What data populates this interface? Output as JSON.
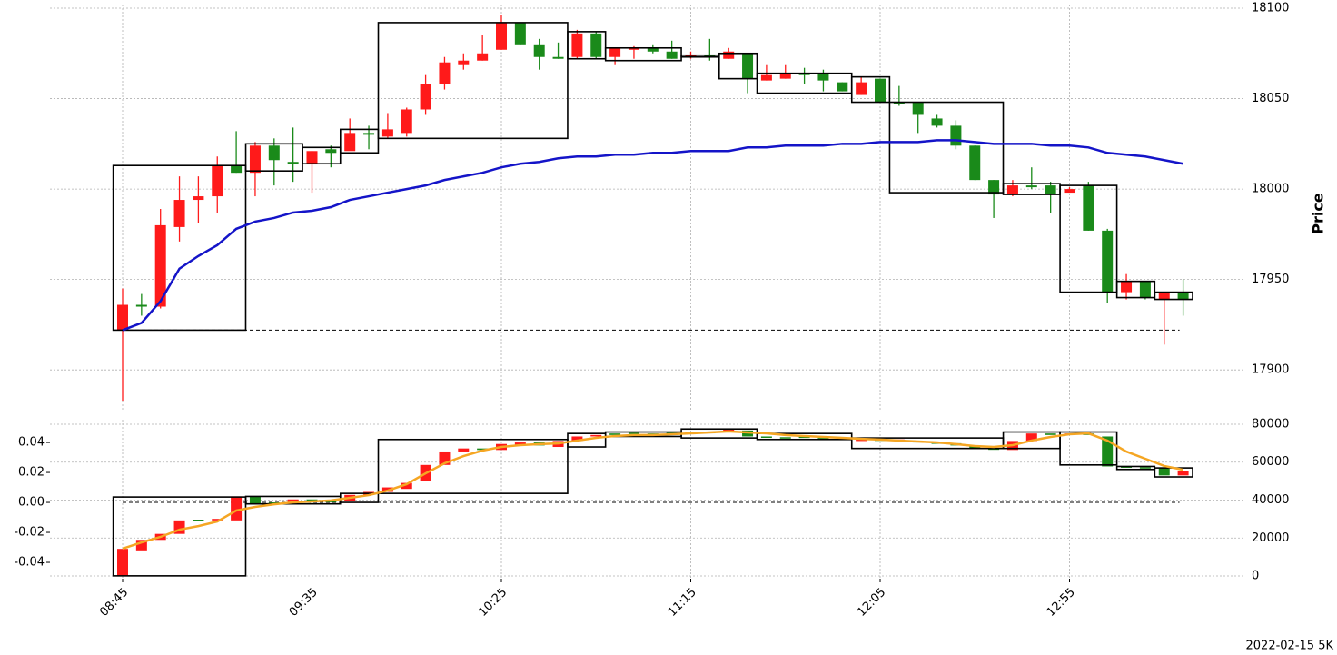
{
  "chart_data": [
    {
      "type": "candlestick",
      "ylabel": "Price",
      "ylim": [
        17877,
        18102
      ],
      "yticks": [
        17900,
        17950,
        18000,
        18050,
        18100
      ],
      "grid": true,
      "up_color": "#ff1a1a",
      "down_color": "#1a8a1a",
      "open": [
        17922,
        17936,
        17935,
        17979,
        17994,
        17996,
        18013,
        18009,
        18024,
        18015,
        18014,
        18022,
        18021,
        18031,
        18029,
        18031,
        18044,
        18058,
        18069,
        18071,
        18077,
        18092,
        18080,
        18073,
        18073,
        18086,
        18073,
        18077,
        18078,
        18076,
        18073,
        18074,
        18072,
        18075,
        18060,
        18061,
        18064,
        18064,
        18059,
        18052,
        18061,
        18048,
        18048,
        18039,
        18035,
        18024,
        18005,
        17997,
        18002,
        18002,
        17998,
        18002,
        17977,
        17943,
        17949,
        17939,
        17943
      ],
      "high": [
        17945,
        17942,
        17989,
        18007,
        18007,
        18018,
        18032,
        18026,
        18028,
        18034,
        18021,
        18024,
        18039,
        18035,
        18042,
        18045,
        18063,
        18073,
        18075,
        18085,
        18096,
        18092,
        18083,
        18081,
        18088,
        18087,
        18078,
        18079,
        18080,
        18082,
        18076,
        18083,
        18078,
        18075,
        18069,
        18069,
        18067,
        18066,
        18059,
        18062,
        18061,
        18057,
        18048,
        18041,
        18038,
        18024,
        18005,
        18005,
        18012,
        18004,
        18001,
        18004,
        17978,
        17953,
        17949,
        17943,
        17950
      ],
      "low": [
        17883,
        17930,
        17934,
        17971,
        17981,
        17987,
        18009,
        17996,
        18002,
        18004,
        17998,
        18012,
        18022,
        18022,
        18028,
        18029,
        18041,
        18055,
        18066,
        18071,
        18077,
        18080,
        18066,
        18072,
        18072,
        18072,
        18069,
        18072,
        18075,
        18072,
        18072,
        18071,
        18072,
        18053,
        18060,
        18061,
        18058,
        18054,
        18054,
        18052,
        18048,
        18046,
        18031,
        18034,
        18022,
        18005,
        17984,
        17996,
        18000,
        17987,
        17998,
        17977,
        17937,
        17939,
        17939,
        17914,
        17930
      ],
      "close": [
        17936,
        17935,
        17980,
        17994,
        17996,
        18013,
        18009,
        18024,
        18016,
        18014,
        18021,
        18020,
        18031,
        18030,
        18033,
        18044,
        18058,
        18070,
        18071,
        18075,
        18092,
        18080,
        18073,
        18072,
        18086,
        18073,
        18078,
        18078,
        18076,
        18072,
        18074,
        18073,
        18076,
        18061,
        18063,
        18064,
        18063,
        18060,
        18054,
        18059,
        18048,
        18047,
        18041,
        18035,
        18024,
        18005,
        17997,
        18002,
        18001,
        17997,
        18000,
        17977,
        17943,
        17949,
        17940,
        17943,
        17939
      ],
      "line": {
        "color": "#1414c8",
        "values": [
          17922,
          17926,
          17938,
          17956,
          17963,
          17969,
          17978,
          17982,
          17984,
          17987,
          17988,
          17990,
          17994,
          17996,
          17998,
          18000,
          18002,
          18005,
          18007,
          18009,
          18012,
          18014,
          18015,
          18017,
          18018,
          18018,
          18019,
          18019,
          18020,
          18020,
          18021,
          18021,
          18021,
          18023,
          18023,
          18024,
          18024,
          18024,
          18025,
          18025,
          18026,
          18026,
          18026,
          18027,
          18027,
          18026,
          18025,
          18025,
          18025,
          18024,
          18024,
          18023,
          18020,
          18019,
          18018,
          18016,
          18014
        ]
      },
      "boxes": [
        {
          "start": 0,
          "end": 6,
          "top": 18013,
          "bottom": 17922
        },
        {
          "start": 7,
          "end": 9,
          "top": 18025,
          "bottom": 18010
        },
        {
          "start": 10,
          "end": 11,
          "top": 18023,
          "bottom": 18014
        },
        {
          "start": 12,
          "end": 13,
          "top": 18033,
          "bottom": 18020
        },
        {
          "start": 14,
          "end": 23,
          "top": 18092,
          "bottom": 18028
        },
        {
          "start": 24,
          "end": 25,
          "top": 18087,
          "bottom": 18072
        },
        {
          "start": 26,
          "end": 29,
          "top": 18078,
          "bottom": 18071
        },
        {
          "start": 30,
          "end": 31,
          "top": 18074,
          "bottom": 18073
        },
        {
          "start": 32,
          "end": 33,
          "top": 18075,
          "bottom": 18061
        },
        {
          "start": 34,
          "end": 38,
          "top": 18064,
          "bottom": 18053
        },
        {
          "start": 39,
          "end": 40,
          "top": 18062,
          "bottom": 18048
        },
        {
          "start": 41,
          "end": 46,
          "top": 18048,
          "bottom": 17998
        },
        {
          "start": 47,
          "end": 49,
          "top": 18003,
          "bottom": 17997
        },
        {
          "start": 50,
          "end": 52,
          "top": 18002,
          "bottom": 17943
        },
        {
          "start": 53,
          "end": 54,
          "top": 17949,
          "bottom": 17940
        },
        {
          "start": 55,
          "end": 56,
          "top": 17943,
          "bottom": 17939
        }
      ],
      "reference_line": 17922
    },
    {
      "type": "candlestick",
      "ylim": [
        -0.0509,
        0.0552
      ],
      "yticks": [
        {
          "value": -0.04,
          "label": "-0.04"
        },
        {
          "value": -0.02,
          "label": "-0.02"
        },
        {
          "value": 0,
          "label": "0.00"
        },
        {
          "value": 0.02,
          "label": "0.02"
        },
        {
          "value": 0.04,
          "label": "0.04"
        }
      ],
      "y2lim": [
        -1437,
        82395
      ],
      "y2ticks": [
        0,
        20000,
        40000,
        60000,
        80000
      ],
      "grid": true,
      "up_color": "#ff1a1a",
      "down_color": "#1a8a1a",
      "open": [
        -0.049,
        -0.032,
        -0.025,
        -0.021,
        -0.0115,
        -0.012,
        -0.012,
        0.004,
        0.0,
        0.0,
        0.002,
        0.001,
        0.001,
        0.005,
        0.007,
        0.009,
        0.014,
        0.025,
        0.034,
        0.036,
        0.035,
        0.038,
        0.04,
        0.037,
        0.041,
        0.044,
        0.046,
        0.0465,
        0.046,
        0.0465,
        0.0465,
        0.047,
        0.047,
        0.048,
        0.044,
        0.0435,
        0.044,
        0.043,
        0.0425,
        0.041,
        0.042,
        0.041,
        0.041,
        0.04,
        0.0395,
        0.038,
        0.036,
        0.035,
        0.041,
        0.046,
        0.045,
        0.046,
        0.044,
        0.024,
        0.0235,
        0.023,
        0.018
      ],
      "close": [
        -0.031,
        -0.025,
        -0.021,
        -0.012,
        -0.0125,
        -0.011,
        0.004,
        -0.001,
        -0.001,
        0.002,
        0.001,
        0.0005,
        0.005,
        0.007,
        0.01,
        0.013,
        0.025,
        0.034,
        0.036,
        0.035,
        0.039,
        0.04,
        0.038,
        0.041,
        0.044,
        0.045,
        0.045,
        0.046,
        0.0455,
        0.046,
        0.047,
        0.0465,
        0.049,
        0.044,
        0.0435,
        0.043,
        0.043,
        0.0425,
        0.042,
        0.042,
        0.0415,
        0.042,
        0.04,
        0.0395,
        0.038,
        0.036,
        0.0355,
        0.041,
        0.046,
        0.045,
        0.046,
        0.045,
        0.024,
        0.0235,
        0.023,
        0.018,
        0.021
      ],
      "line": {
        "color": "#f5a623",
        "axis": "y2",
        "values": [
          14400,
          17700,
          20600,
          24400,
          26300,
          28700,
          34500,
          36400,
          37800,
          38800,
          39300,
          39800,
          41200,
          42600,
          45000,
          48400,
          54100,
          59400,
          63200,
          66100,
          68000,
          69000,
          69500,
          69900,
          71400,
          72800,
          73800,
          74300,
          74300,
          74700,
          75200,
          75700,
          76200,
          75700,
          75200,
          74300,
          73800,
          73300,
          72800,
          72300,
          71900,
          71400,
          70900,
          70400,
          69500,
          68500,
          68000,
          69000,
          71400,
          73300,
          74700,
          75200,
          71400,
          65600,
          61800,
          58000,
          56000
        ]
      },
      "boxes": [
        {
          "start": 0,
          "end": 6,
          "top": 0.0036,
          "bottom": -0.049
        },
        {
          "start": 7,
          "end": 11,
          "top": 0.004,
          "bottom": -0.001
        },
        {
          "start": 12,
          "end": 13,
          "top": 0.006,
          "bottom": 0.0
        },
        {
          "start": 14,
          "end": 23,
          "top": 0.042,
          "bottom": 0.006
        },
        {
          "start": 24,
          "end": 25,
          "top": 0.046,
          "bottom": 0.037
        },
        {
          "start": 26,
          "end": 29,
          "top": 0.047,
          "bottom": 0.044
        },
        {
          "start": 30,
          "end": 33,
          "top": 0.049,
          "bottom": 0.043
        },
        {
          "start": 34,
          "end": 38,
          "top": 0.046,
          "bottom": 0.042
        },
        {
          "start": 39,
          "end": 46,
          "top": 0.043,
          "bottom": 0.036
        },
        {
          "start": 47,
          "end": 49,
          "top": 0.047,
          "bottom": 0.036
        },
        {
          "start": 50,
          "end": 52,
          "top": 0.047,
          "bottom": 0.025
        },
        {
          "start": 53,
          "end": 54,
          "top": 0.024,
          "bottom": 0.022
        },
        {
          "start": 55,
          "end": 56,
          "top": 0.023,
          "bottom": 0.017
        }
      ],
      "reference_line": 0,
      "categories": [
        "08:45",
        null,
        null,
        null,
        null,
        null,
        null,
        null,
        null,
        null,
        "09:35",
        null,
        null,
        null,
        null,
        null,
        null,
        null,
        null,
        null,
        "10:25",
        null,
        null,
        null,
        null,
        null,
        null,
        null,
        null,
        null,
        "11:15",
        null,
        null,
        null,
        null,
        null,
        null,
        null,
        null,
        null,
        "12:05",
        null,
        null,
        null,
        null,
        null,
        null,
        null,
        null,
        null,
        "12:55",
        null,
        null,
        null,
        null,
        null,
        null
      ]
    }
  ],
  "footer": "2022-02-15 5K"
}
